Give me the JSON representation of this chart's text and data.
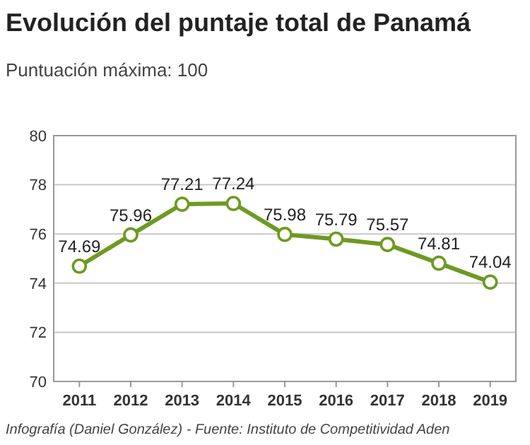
{
  "chart_data": {
    "type": "line",
    "title": "Evolución del puntaje total de Panamá",
    "subtitle": "Puntuación máxima: 100",
    "categories": [
      "2011",
      "2012",
      "2013",
      "2014",
      "2015",
      "2016",
      "2017",
      "2018",
      "2019"
    ],
    "series": [
      {
        "color": "#6e9a22",
        "values": [
          74.69,
          75.96,
          77.21,
          77.24,
          75.98,
          75.79,
          75.57,
          74.81,
          74.04
        ]
      }
    ],
    "ylim": [
      70,
      80
    ],
    "yticks": [
      70,
      72,
      74,
      76,
      78,
      80
    ],
    "grid": "y",
    "marker": "circle",
    "data_labels": true,
    "annotations": [
      "Infografía (Daniel González) - Fuente: Instituto de Competitividad Aden"
    ]
  }
}
